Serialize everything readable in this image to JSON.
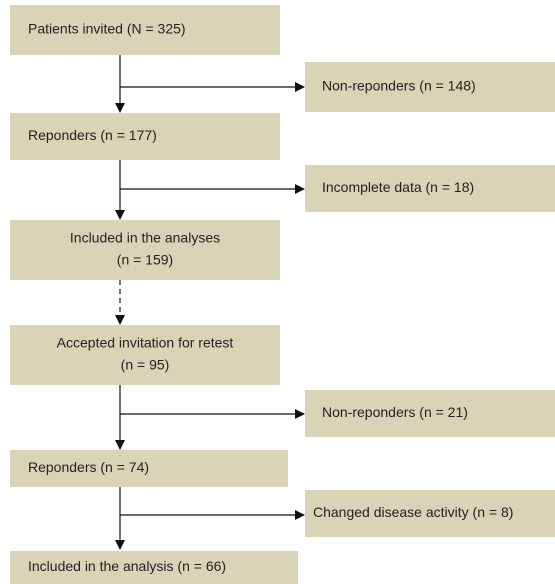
{
  "nodes": [
    {
      "lines": [
        "Patients invited (N = 325)"
      ]
    },
    {
      "lines": [
        "Non-reponders (n = 148)"
      ]
    },
    {
      "lines": [
        "Reponders (n = 177)"
      ]
    },
    {
      "lines": [
        "Incomplete data (n = 18)"
      ]
    },
    {
      "lines": [
        "Included in the analyses",
        "(n = 159)"
      ]
    },
    {
      "lines": [
        "Accepted invitation for retest",
        "(n = 95)"
      ]
    },
    {
      "lines": [
        "Non-reponders (n = 21)"
      ]
    },
    {
      "lines": [
        "Reponders (n = 74)"
      ]
    },
    {
      "lines": [
        "Changed disease activity (n = 8)"
      ]
    },
    {
      "lines": [
        "Included in the analysis (n = 66)"
      ]
    }
  ]
}
